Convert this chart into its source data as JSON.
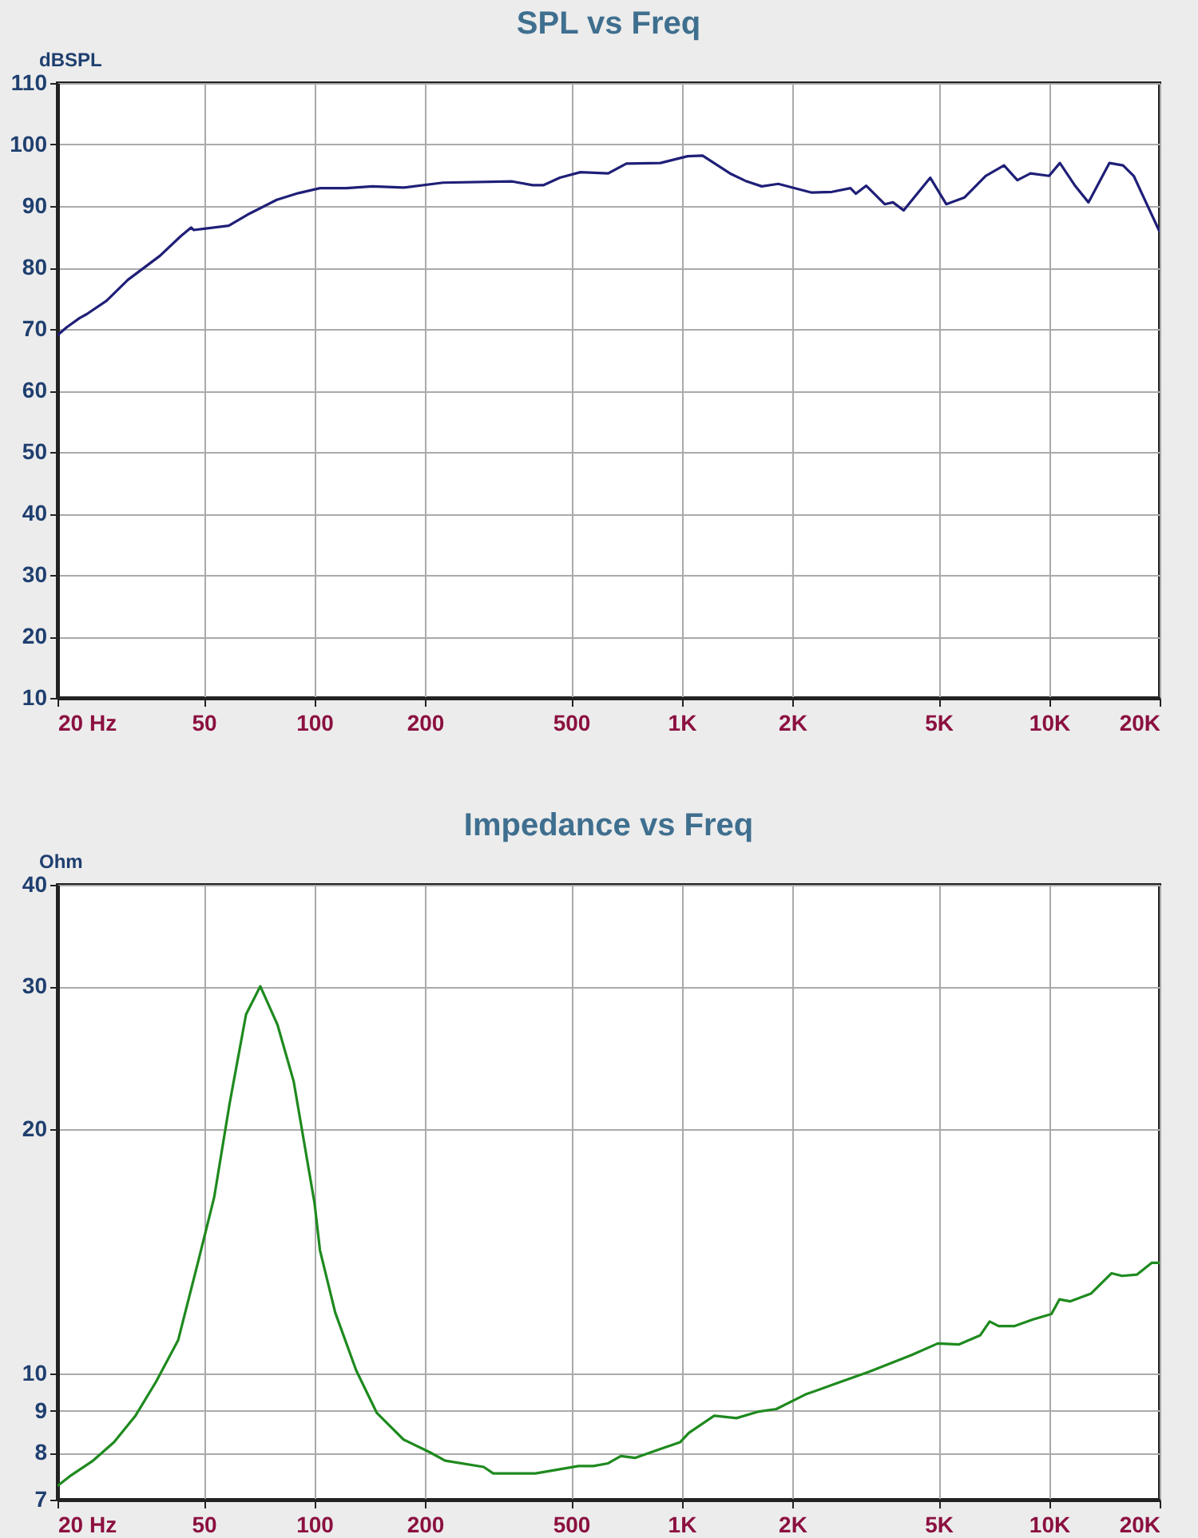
{
  "chart_data": [
    {
      "type": "line",
      "title": "SPL vs Freq",
      "ylabel": "dBSPL",
      "log": "x",
      "grid": true,
      "x": [
        20,
        21.2,
        23,
        24,
        27.2,
        31.1,
        38,
        43.3,
        46.2,
        47,
        58.5,
        66.8,
        79,
        90.5,
        103.6,
        122,
        144,
        175,
        224,
        346,
        393,
        421,
        466,
        530,
        631,
        707,
        875,
        1038,
        1140,
        1354,
        1490,
        1652,
        1832,
        2250,
        2565,
        2880,
        2980,
        3180,
        3570,
        3760,
        4020,
        4750,
        5250,
        5890,
        6720,
        7540,
        8200,
        8900,
        10000,
        10700,
        11800,
        12800,
        14600,
        15900,
        17000,
        20000
      ],
      "series": [
        {
          "color": "#1f1f78",
          "values": [
            69,
            70.3,
            71.8,
            72.4,
            74.6,
            78,
            81.9,
            85.1,
            86.5,
            86.1,
            86.8,
            88.8,
            91,
            92.1,
            92.9,
            92.9,
            93.2,
            93,
            93.8,
            94,
            93.4,
            93.4,
            94.6,
            95.5,
            95.3,
            96.9,
            97,
            98.1,
            98.2,
            95.3,
            94.1,
            93.2,
            93.6,
            92.2,
            92.3,
            92.9,
            92,
            93.3,
            90.3,
            90.6,
            89.3,
            94.6,
            90.3,
            91.4,
            94.9,
            96.6,
            94.2,
            95.3,
            94.9,
            97,
            93.2,
            90.6,
            97,
            96.6,
            94.9,
            85.8
          ]
        }
      ],
      "xlim": [
        20,
        20000
      ],
      "ylim": [
        10,
        110
      ],
      "xticks": [
        {
          "value": 20,
          "label": "20  Hz"
        },
        50,
        100,
        200,
        500,
        {
          "value": 1000,
          "label": "1K"
        },
        {
          "value": 2000,
          "label": "2K"
        },
        {
          "value": 5000,
          "label": "5K"
        },
        {
          "value": 10000,
          "label": "10K"
        },
        {
          "value": 20000,
          "label": "20K"
        }
      ],
      "yticks": [
        10,
        20,
        30,
        40,
        50,
        60,
        70,
        80,
        90,
        100,
        110
      ]
    },
    {
      "type": "line",
      "title": "Impedance vs Freq",
      "ylabel": "Ohm",
      "log": "xy",
      "grid": true,
      "x": [
        20,
        21.6,
        25,
        28.5,
        32.6,
        37.1,
        42.6,
        48.4,
        53.4,
        58.8,
        65.2,
        71.3,
        79.4,
        87.9,
        100.2,
        103.6,
        114,
        130,
        148,
        175,
        207,
        227,
        289,
        307,
        400,
        524,
        575,
        631,
        683,
        746,
        888,
        991,
        1046,
        1226,
        1410,
        1610,
        1810,
        2170,
        2650,
        3240,
        4230,
        4980,
        5690,
        6490,
        6890,
        7290,
        8060,
        9050,
        10150,
        10670,
        11400,
        12990,
        14800,
        15800,
        17360,
        19050,
        20000
      ],
      "series": [
        {
          "color": "#1e8a1e",
          "values": [
            7.28,
            7.48,
            7.82,
            8.24,
            8.88,
            9.78,
            11,
            13.8,
            16.5,
            21.5,
            27.7,
            30,
            26.9,
            22.9,
            16.2,
            14.2,
            11.9,
            10.1,
            8.95,
            8.3,
            8,
            7.82,
            7.68,
            7.54,
            7.54,
            7.7,
            7.7,
            7.76,
            7.92,
            7.88,
            8.1,
            8.24,
            8.46,
            8.88,
            8.82,
            8.98,
            9.05,
            9.43,
            9.74,
            10.06,
            10.55,
            10.9,
            10.87,
            11.15,
            11.6,
            11.45,
            11.45,
            11.67,
            11.85,
            12.35,
            12.28,
            12.55,
            13.3,
            13.2,
            13.25,
            13.7,
            13.7
          ]
        }
      ],
      "xlim": [
        20,
        20000
      ],
      "ylim": [
        7,
        40
      ],
      "xticks": [
        {
          "value": 20,
          "label": "20  Hz"
        },
        50,
        100,
        200,
        500,
        {
          "value": 1000,
          "label": "1K"
        },
        {
          "value": 2000,
          "label": "2K"
        },
        {
          "value": 5000,
          "label": "5K"
        },
        {
          "value": 10000,
          "label": "10K"
        },
        {
          "value": 20000,
          "label": "20K"
        }
      ],
      "yticks": [
        7,
        8,
        9,
        10,
        20,
        30,
        40
      ]
    }
  ]
}
